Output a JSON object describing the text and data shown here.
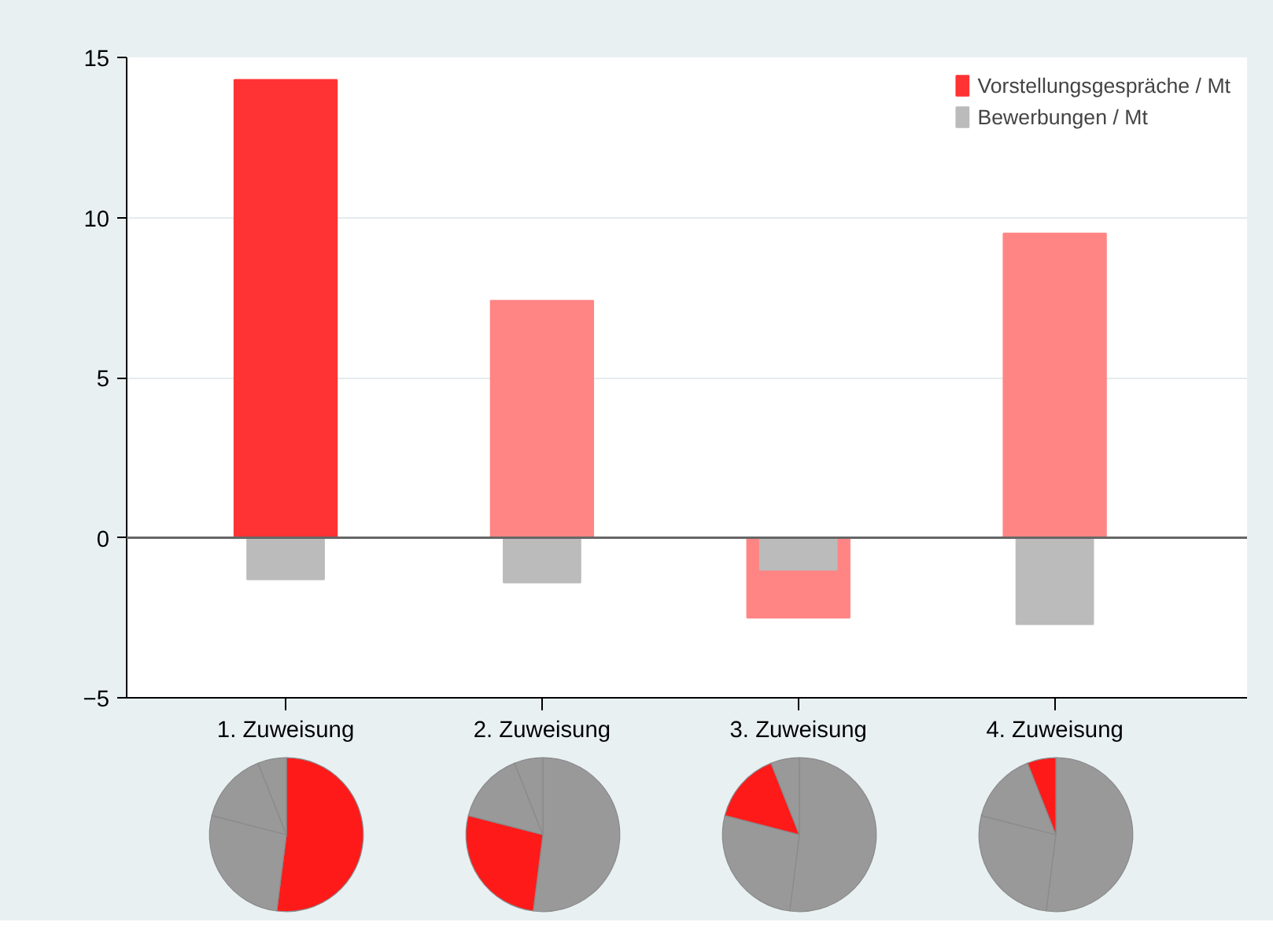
{
  "chart_data": [
    {
      "type": "bar",
      "categories": [
        "1. Zuweisung",
        "2. Zuweisung",
        "3. Zuweisung",
        "4. Zuweisung"
      ],
      "series": [
        {
          "name": "Vorstellungsgespräche / Mt",
          "values": [
            14.3,
            7.4,
            -2.5,
            9.5
          ],
          "colors": [
            "#ff3333",
            "#ff8585",
            "#ff8585",
            "#ff8585"
          ]
        },
        {
          "name": "Bewerbungen / Mt",
          "values": [
            -1.3,
            -1.4,
            -1.0,
            -2.7
          ],
          "colors": [
            "#bbbbbb",
            "#bbbbbb",
            "#bbbbbb",
            "#bbbbbb"
          ]
        }
      ],
      "ylim": [
        -5,
        15
      ],
      "yticks": [
        -5,
        0,
        5,
        10,
        15
      ],
      "grid": "y",
      "legend": "top right",
      "ref_lines": [
        {
          "axis": "y",
          "value": 0,
          "color": "#666666"
        }
      ]
    },
    {
      "type": "pie",
      "categories": [
        null,
        null,
        null,
        null
      ],
      "values": [
        52,
        27,
        15,
        6
      ],
      "colors": [
        "#ff1a1a",
        "#999999",
        "#999999",
        "#999999"
      ]
    },
    {
      "type": "pie",
      "categories": [
        null,
        null,
        null,
        null
      ],
      "values": [
        52,
        27,
        15,
        6
      ],
      "colors": [
        "#999999",
        "#ff1a1a",
        "#999999",
        "#999999"
      ]
    },
    {
      "type": "pie",
      "categories": [
        null,
        null,
        null,
        null
      ],
      "values": [
        52,
        27,
        15,
        6
      ],
      "colors": [
        "#999999",
        "#999999",
        "#ff1a1a",
        "#999999"
      ]
    },
    {
      "type": "pie",
      "categories": [
        null,
        null,
        null,
        null
      ],
      "values": [
        52,
        27,
        15,
        6
      ],
      "colors": [
        "#999999",
        "#999999",
        "#999999",
        "#ff1a1a"
      ]
    }
  ]
}
